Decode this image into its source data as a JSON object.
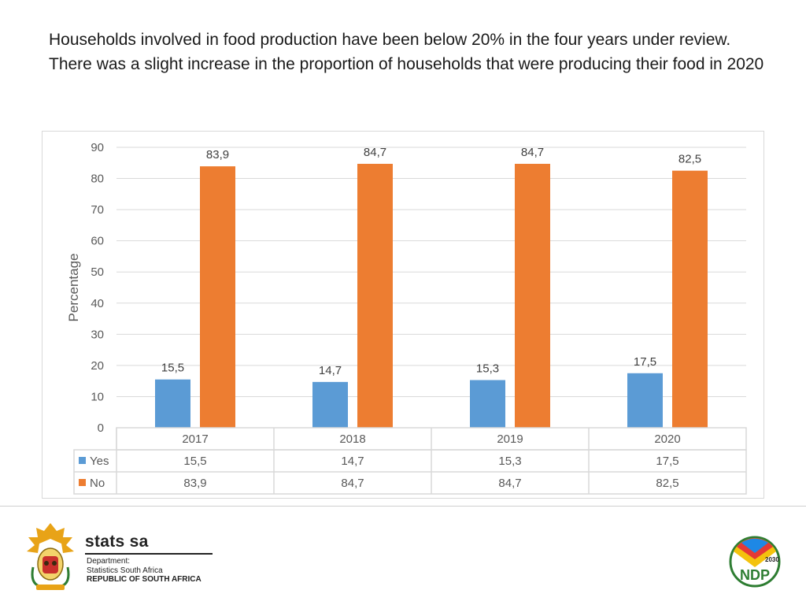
{
  "headline": {
    "line1": "Households involved in food production have been below 20% in the four years under review.",
    "line2": "There was a slight increase in the proportion of households that were producing their food in 2020"
  },
  "chart_data": {
    "type": "bar",
    "categories": [
      "2017",
      "2018",
      "2019",
      "2020"
    ],
    "series": [
      {
        "name": "Yes",
        "values": [
          15.5,
          14.7,
          15.3,
          17.5
        ],
        "labels": [
          "15,5",
          "14,7",
          "15,3",
          "17,5"
        ],
        "color": "#5b9bd5"
      },
      {
        "name": "No",
        "values": [
          83.9,
          84.7,
          84.7,
          82.5
        ],
        "labels": [
          "83,9",
          "84,7",
          "84,7",
          "82,5"
        ],
        "color": "#ed7d31"
      }
    ],
    "ylabel": "Percentage",
    "xlabel": "",
    "ylim": [
      0,
      90
    ],
    "yticks": [
      0,
      10,
      20,
      30,
      40,
      50,
      60,
      70,
      80,
      90
    ],
    "grid": true,
    "legend": "data-table"
  },
  "footer": {
    "logo_text": "stats sa",
    "dept_line1": "Department:",
    "dept_line2": "Statistics South Africa",
    "dept_line3": "REPUBLIC OF SOUTH AFRICA",
    "ndp_text": "NDP",
    "ndp_year": "2030"
  },
  "colors": {
    "grid": "#d9d9d9",
    "axis_text": "#595959"
  }
}
